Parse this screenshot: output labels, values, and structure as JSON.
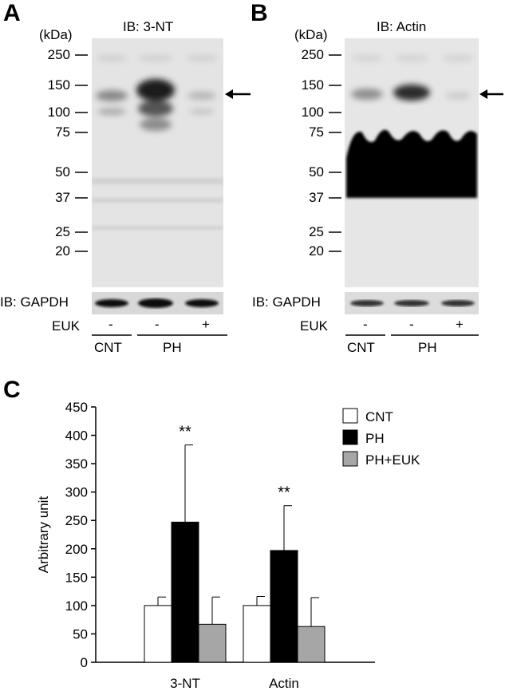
{
  "panels": {
    "A": {
      "letter": "A",
      "kda": "(kDa)",
      "ib_title": "IB: 3-NT",
      "ib_loading": "IB: GAPDH",
      "markers": [
        "250",
        "150",
        "100",
        "75",
        "50",
        "37",
        "25",
        "20"
      ],
      "euk_label": "EUK",
      "lanes": [
        "-",
        "-",
        "+"
      ],
      "groups": [
        "CNT",
        "PH"
      ]
    },
    "B": {
      "letter": "B",
      "kda": "(kDa)",
      "ib_title": "IB: Actin",
      "ib_loading": "IB: GAPDH",
      "markers": [
        "250",
        "150",
        "100",
        "75",
        "50",
        "37",
        "25",
        "20"
      ],
      "euk_label": "EUK",
      "lanes": [
        "-",
        "-",
        "+"
      ],
      "groups": [
        "CNT",
        "PH"
      ]
    },
    "C": {
      "letter": "C"
    }
  },
  "chart_data": {
    "type": "bar",
    "categories": [
      "3-NT",
      "Actin"
    ],
    "series": [
      {
        "name": "CNT",
        "values": [
          100,
          100
        ],
        "errors": [
          15,
          16
        ],
        "color": "#ffffff"
      },
      {
        "name": "PH",
        "values": [
          247,
          197
        ],
        "errors": [
          136,
          79
        ],
        "color": "#000000"
      },
      {
        "name": "PH+EUK",
        "values": [
          67,
          63
        ],
        "errors": [
          48,
          51
        ],
        "color": "#a6a6a6"
      }
    ],
    "annotations": [
      {
        "category": "3-NT",
        "series": "PH",
        "text": "**"
      },
      {
        "category": "Actin",
        "series": "PH",
        "text": "**"
      }
    ],
    "ylabel": "Arbitrary unit",
    "ylim": [
      0,
      450
    ],
    "yticks": [
      0,
      50,
      100,
      150,
      200,
      250,
      300,
      350,
      400,
      450
    ],
    "legend": "top-right",
    "grid": false
  }
}
